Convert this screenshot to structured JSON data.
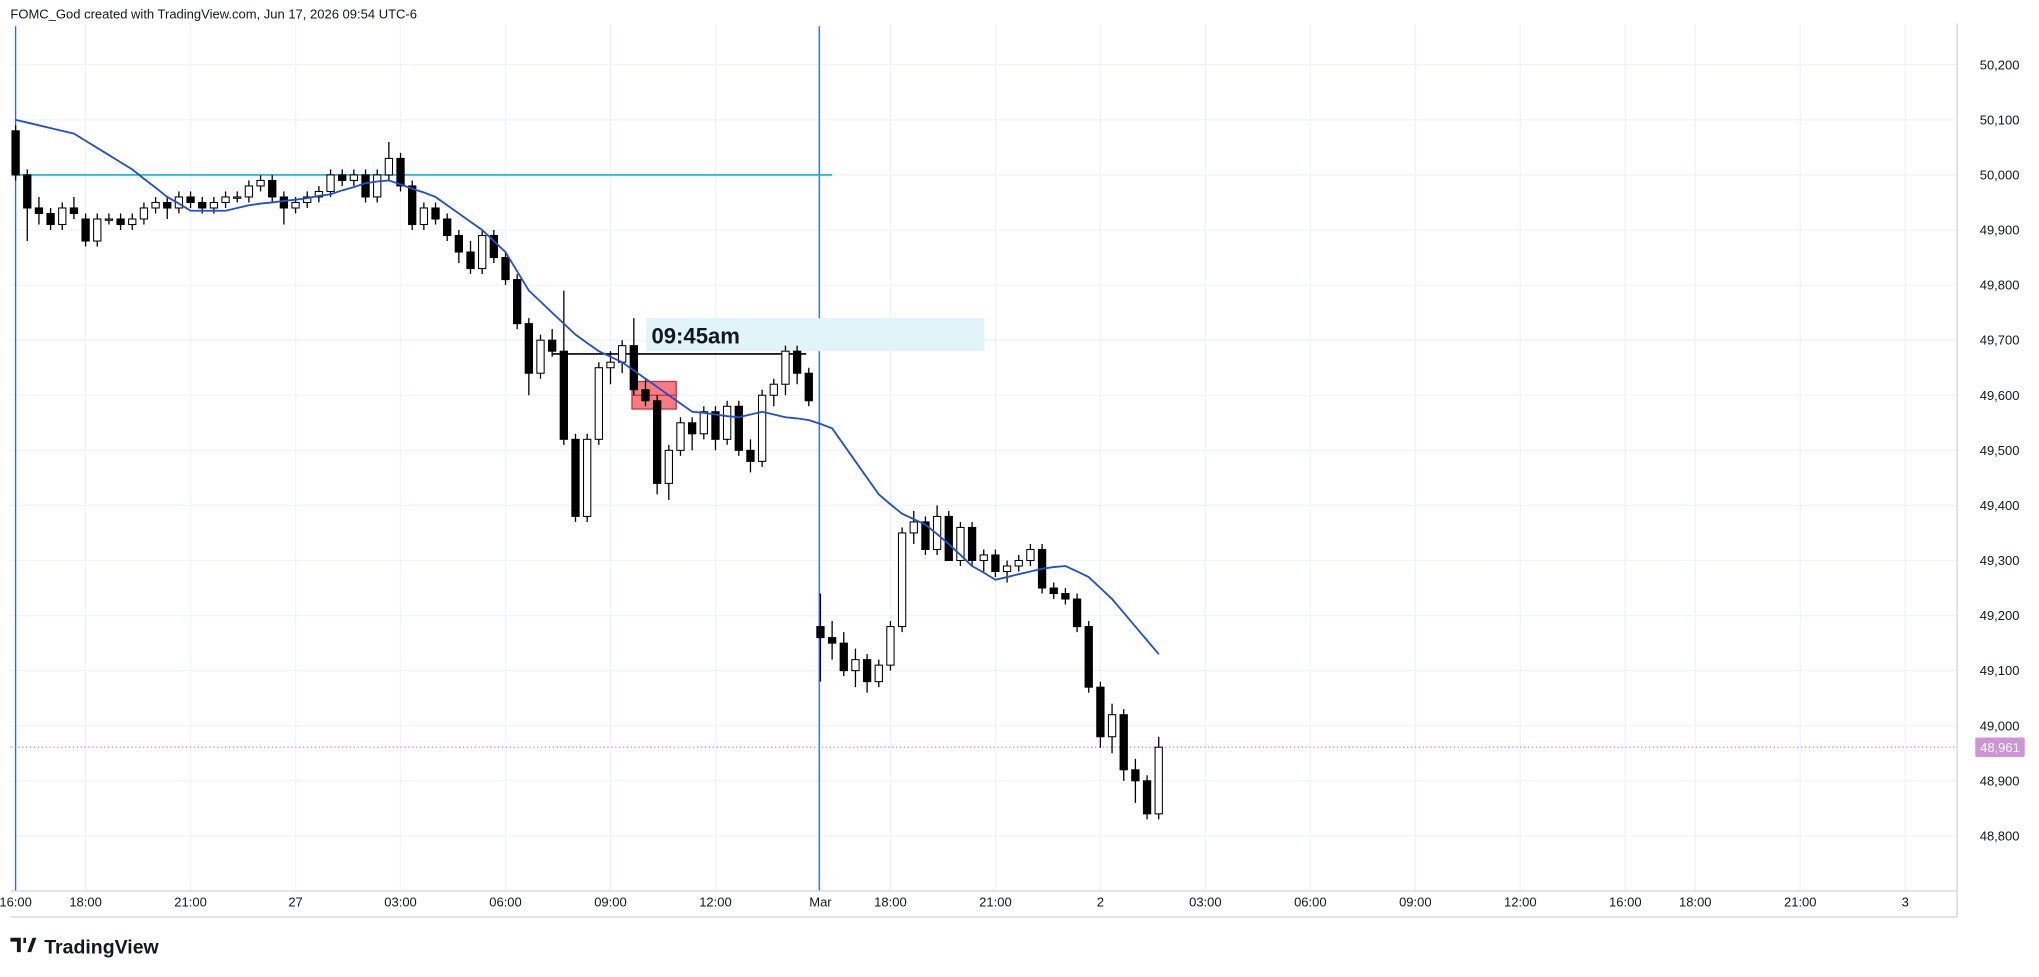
{
  "chart_data": {
    "type": "candlestick",
    "title": "FOMC_God created with TradingView.com, Jun 17, 2026 09:54 UTC-6",
    "source": "TradingView",
    "annotation": "09:45am",
    "up_color": "#ffffff",
    "down_color": "#000000",
    "wick_color": "#000000",
    "ma_color": "#1f4fd6",
    "grid": true,
    "ylim": [
      48700,
      50270
    ],
    "yticks": [
      {
        "value": 48800,
        "label": "48,800"
      },
      {
        "value": 48900,
        "label": "48,900"
      },
      {
        "value": 49000,
        "label": "49,000"
      },
      {
        "value": 49100,
        "label": "49,100"
      },
      {
        "value": 49200,
        "label": "49,200"
      },
      {
        "value": 49300,
        "label": "49,300"
      },
      {
        "value": 49400,
        "label": "49,400"
      },
      {
        "value": 49500,
        "label": "49,500"
      },
      {
        "value": 49600,
        "label": "49,600"
      },
      {
        "value": 49700,
        "label": "49,700"
      },
      {
        "value": 49800,
        "label": "49,800"
      },
      {
        "value": 49900,
        "label": "49,900"
      },
      {
        "value": 50000,
        "label": "50,000"
      },
      {
        "value": 50100,
        "label": "50,100"
      },
      {
        "value": 50200,
        "label": "50,200"
      }
    ],
    "last_price": {
      "value": 48961,
      "label": "48,961",
      "color": "#ce93d8"
    },
    "levels": [
      {
        "value": 50000,
        "color": "#00bcd4"
      },
      {
        "value": 49675,
        "color": "#000000"
      }
    ],
    "zones": [
      {
        "top": 49740,
        "bottom": 49680,
        "color": "#e0f4fa"
      },
      {
        "top": 49625,
        "bottom": 49575,
        "color": "#f77c80"
      }
    ],
    "categories": [
      "16:00",
      null,
      null,
      null,
      null,
      null,
      "18:00",
      null,
      null,
      null,
      null,
      null,
      null,
      null,
      null,
      "21:00",
      null,
      null,
      null,
      null,
      null,
      null,
      null,
      null,
      "27",
      null,
      null,
      null,
      null,
      null,
      null,
      null,
      null,
      "03:00",
      null,
      null,
      null,
      null,
      null,
      null,
      null,
      null,
      "06:00",
      null,
      null,
      null,
      null,
      null,
      null,
      null,
      null,
      "09:00",
      null,
      null,
      null,
      null,
      null,
      null,
      null,
      null,
      "12:00",
      null,
      null,
      null,
      null,
      null,
      null,
      null,
      null,
      "Mar",
      null,
      null,
      null,
      null,
      null,
      "18:00",
      null,
      null,
      null,
      null,
      null,
      null,
      null,
      null,
      "21:00",
      null,
      null,
      null,
      null,
      null,
      null,
      null,
      null,
      "2",
      null,
      null,
      null,
      null,
      null,
      null,
      null,
      null,
      "03:00",
      null,
      null,
      null,
      null,
      null,
      null,
      null,
      null,
      "06:00",
      null,
      null,
      null,
      null,
      null,
      null,
      null,
      null,
      "09:00",
      null,
      null,
      null,
      null,
      null,
      null,
      null,
      null,
      "12:00",
      null,
      null,
      null,
      null,
      null,
      null,
      null,
      null,
      "16:00",
      null,
      null,
      null,
      null,
      null,
      "18:00",
      null,
      null,
      null,
      null,
      null,
      null,
      null,
      null,
      "21:00",
      null,
      null,
      null,
      null,
      null,
      null,
      null,
      null,
      "3",
      null,
      null,
      null
    ],
    "open": [
      50080,
      50000,
      49940,
      49930,
      49910,
      49940,
      49920,
      49880,
      49920,
      49920,
      49910,
      49920,
      49940,
      49950,
      49940,
      49960,
      49950,
      49940,
      49950,
      49960,
      49960,
      49980,
      49990,
      49960,
      49940,
      49950,
      49960,
      49970,
      50000,
      49990,
      50000,
      49960,
      50000,
      50030,
      49980,
      49910,
      49940,
      49920,
      49890,
      49860,
      49830,
      49890,
      49850,
      49810,
      49730,
      49640,
      49700,
      49680,
      49520,
      49380,
      49520,
      49650,
      49660,
      49690,
      49610,
      49590,
      49440,
      49500,
      49550,
      49530,
      49570,
      49520,
      49580,
      49500,
      49480,
      49600,
      49620,
      49680,
      49640,
      49180,
      49160,
      49150,
      49100,
      49120,
      49080,
      49110,
      49180,
      49350,
      49370,
      49320,
      49380,
      49300,
      49360,
      49300,
      49310,
      49280,
      49290,
      49300,
      49320,
      49250,
      49240,
      49230,
      49180,
      49070,
      48980,
      49020,
      48920,
      48900,
      48840,
      null,
      null,
      null,
      null,
      null,
      null,
      null,
      null,
      null,
      null,
      null,
      null,
      null,
      null,
      null,
      null,
      null,
      null,
      null,
      null,
      null,
      null,
      null,
      null,
      null,
      null,
      null,
      null,
      null,
      null,
      null,
      null,
      null,
      null,
      null,
      null,
      null,
      null,
      null,
      null,
      null,
      null,
      null,
      null,
      null,
      null,
      null,
      null,
      null,
      null,
      null,
      null,
      null,
      null,
      null,
      null,
      null,
      null,
      null,
      null,
      null,
      null,
      null,
      null,
      null,
      null,
      null
    ],
    "high": [
      50090,
      50010,
      49960,
      49940,
      49950,
      49960,
      49930,
      49930,
      49930,
      49930,
      49930,
      49950,
      49960,
      49960,
      49970,
      49970,
      49960,
      49960,
      49970,
      49970,
      49990,
      50000,
      50000,
      49970,
      49960,
      49970,
      49980,
      50010,
      50010,
      50010,
      50010,
      50010,
      50060,
      50040,
      49990,
      49950,
      49950,
      49930,
      49900,
      49880,
      49900,
      49900,
      49860,
      49820,
      49740,
      49710,
      49720,
      49790,
      49530,
      49530,
      49660,
      49680,
      49700,
      49740,
      49630,
      49600,
      49510,
      49560,
      49560,
      49580,
      49580,
      49590,
      49590,
      49520,
      49610,
      49630,
      49690,
      49690,
      49650,
      49240,
      49190,
      49170,
      49140,
      49130,
      49120,
      49190,
      49360,
      49390,
      49380,
      49400,
      49390,
      49370,
      49370,
      49320,
      49320,
      49300,
      49310,
      49330,
      49330,
      49260,
      49250,
      49240,
      49190,
      49080,
      49040,
      49030,
      48940,
      48910,
      48980,
      null,
      null,
      null,
      null,
      null,
      null,
      null,
      null,
      null,
      null,
      null,
      null,
      null,
      null,
      null,
      null,
      null,
      null,
      null,
      null,
      null,
      null,
      null,
      null,
      null,
      null,
      null,
      null,
      null,
      null,
      null,
      null,
      null,
      null,
      null,
      null,
      null,
      null,
      null,
      null,
      null,
      null,
      null,
      null,
      null,
      null,
      null,
      null,
      null,
      null,
      null,
      null,
      null,
      null,
      null,
      null,
      null,
      null,
      null,
      null,
      null,
      null,
      null,
      null,
      null,
      null,
      null
    ],
    "low": [
      49990,
      49880,
      49910,
      49900,
      49900,
      49920,
      49870,
      49870,
      49910,
      49900,
      49900,
      49910,
      49930,
      49920,
      49930,
      49940,
      49930,
      49930,
      49940,
      49950,
      49950,
      49970,
      49950,
      49910,
      49930,
      49940,
      49950,
      49960,
      49980,
      49980,
      49950,
      49950,
      49990,
      49970,
      49900,
      49900,
      49910,
      49880,
      49840,
      49820,
      49820,
      49840,
      49800,
      49720,
      49600,
      49630,
      49670,
      49510,
      49370,
      49370,
      49510,
      49620,
      49640,
      49600,
      49580,
      49420,
      49410,
      49490,
      49500,
      49520,
      49500,
      49510,
      49490,
      49460,
      49470,
      49580,
      49600,
      49620,
      49580,
      49080,
      49120,
      49090,
      49070,
      49060,
      49070,
      49100,
      49170,
      49330,
      49310,
      49310,
      49300,
      49290,
      49290,
      49280,
      49270,
      49260,
      49280,
      49290,
      49240,
      49230,
      49220,
      49170,
      49060,
      48960,
      48950,
      48900,
      48860,
      48830,
      48830,
      null,
      null,
      null,
      null,
      null,
      null,
      null,
      null,
      null,
      null,
      null,
      null,
      null,
      null,
      null,
      null,
      null,
      null,
      null,
      null,
      null,
      null,
      null,
      null,
      null,
      null,
      null,
      null,
      null,
      null,
      null,
      null,
      null,
      null,
      null,
      null,
      null,
      null,
      null,
      null,
      null,
      null,
      null,
      null,
      null,
      null,
      null,
      null,
      null,
      null,
      null,
      null,
      null,
      null,
      null,
      null,
      null,
      null,
      null,
      null,
      null,
      null,
      null,
      null,
      null,
      null,
      null
    ],
    "close": [
      50000,
      49940,
      49930,
      49910,
      49940,
      49930,
      49880,
      49920,
      49920,
      49910,
      49920,
      49940,
      49950,
      49940,
      49960,
      49950,
      49940,
      49950,
      49960,
      49960,
      49980,
      49990,
      49960,
      49940,
      49950,
      49960,
      49970,
      50000,
      49990,
      50000,
      49960,
      50000,
      50030,
      49980,
      49910,
      49940,
      49920,
      49890,
      49860,
      49830,
      49890,
      49850,
      49810,
      49730,
      49640,
      49700,
      49680,
      49520,
      49380,
      49520,
      49650,
      49660,
      49690,
      49610,
      49590,
      49440,
      49500,
      49550,
      49530,
      49570,
      49520,
      49580,
      49500,
      49480,
      49600,
      49620,
      49680,
      49640,
      49590,
      49160,
      49150,
      49100,
      49120,
      49080,
      49110,
      49180,
      49350,
      49370,
      49320,
      49380,
      49300,
      49360,
      49300,
      49310,
      49280,
      49290,
      49300,
      49320,
      49250,
      49240,
      49230,
      49180,
      49070,
      48980,
      49020,
      48920,
      48900,
      48840,
      48961,
      null,
      null,
      null,
      null,
      null,
      null,
      null,
      null,
      null,
      null,
      null,
      null,
      null,
      null,
      null,
      null,
      null,
      null,
      null,
      null,
      null,
      null,
      null,
      null,
      null,
      null,
      null,
      null,
      null,
      null,
      null,
      null,
      null,
      null,
      null,
      null,
      null,
      null,
      null,
      null,
      null,
      null,
      null,
      null,
      null,
      null,
      null,
      null,
      null,
      null,
      null,
      null,
      null,
      null,
      null,
      null,
      null,
      null,
      null,
      null,
      null,
      null,
      null,
      null,
      null,
      null,
      null
    ],
    "ma": [
      50100,
      50095,
      50090,
      50085,
      50080,
      50075,
      50062,
      50049,
      50036,
      50023,
      50010,
      49993,
      49977,
      49960,
      49948,
      49935,
      49935,
      49935,
      49935,
      49940,
      49945,
      49948,
      49950,
      49953,
      49955,
      49958,
      49962,
      49965,
      49972,
      49978,
      49985,
      49988,
      49990,
      49983,
      49975,
      49968,
      49960,
      49945,
      49930,
      49915,
      49900,
      49880,
      49860,
      49825,
      49790,
      49770,
      49750,
      49730,
      49710,
      49695,
      49680,
      49670,
      49660,
      49645,
      49630,
      49615,
      49600,
      49585,
      49570,
      49568,
      49565,
      49562,
      49560,
      49565,
      49570,
      49565,
      49560,
      49558,
      49555,
      49548,
      49540,
      49510,
      49480,
      49450,
      49420,
      49402,
      49385,
      49375,
      49365,
      49348,
      49330,
      49310,
      49290,
      49278,
      49265,
      49270,
      49275,
      49280,
      49285,
      49288,
      49290,
      49280,
      49270,
      49250,
      49230,
      49205,
      49180,
      49155,
      49130,
      null,
      null,
      null,
      null,
      null,
      null,
      null,
      null,
      null,
      null,
      null,
      null,
      null,
      null,
      null,
      null,
      null,
      null,
      null,
      null,
      null,
      null,
      null,
      null,
      null,
      null,
      null,
      null,
      null,
      null,
      null,
      null,
      null,
      null,
      null,
      null,
      null,
      null,
      null,
      null,
      null,
      null,
      null,
      null,
      null,
      null,
      null,
      null,
      null,
      null,
      null,
      null,
      null,
      null,
      null,
      null,
      null,
      null,
      null,
      null,
      null,
      null,
      null,
      null,
      null,
      null,
      null
    ]
  }
}
